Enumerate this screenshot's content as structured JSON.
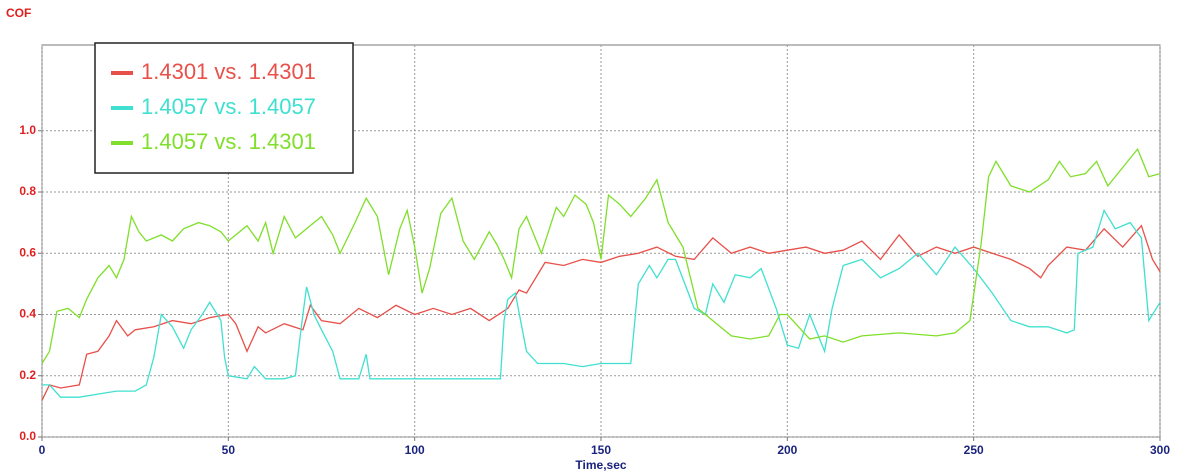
{
  "chart_data": {
    "type": "line",
    "y_label": "COF",
    "x_label": "Time,sec",
    "xlim": [
      0,
      300
    ],
    "xticks": [
      0,
      50,
      100,
      150,
      200,
      250,
      300
    ],
    "ylim": [
      0,
      1.28
    ],
    "yticks": [
      {
        "value": 0,
        "label": "0.0"
      },
      0.2,
      0.4,
      0.6,
      0.8,
      {
        "value": 1,
        "label": "1.0"
      }
    ],
    "grid": true,
    "legend": "upper left",
    "series": [
      {
        "name": "1.4301 vs. 1.4301",
        "color": "#e8504a",
        "x": [
          0,
          2,
          5,
          10,
          12,
          15,
          18,
          20,
          23,
          25,
          30,
          35,
          40,
          45,
          50,
          52,
          55,
          58,
          60,
          65,
          70,
          72,
          75,
          80,
          85,
          90,
          95,
          100,
          105,
          110,
          115,
          120,
          125,
          128,
          130,
          135,
          140,
          145,
          150,
          155,
          160,
          165,
          170,
          175,
          180,
          185,
          190,
          195,
          200,
          205,
          210,
          215,
          220,
          225,
          230,
          235,
          240,
          245,
          250,
          255,
          260,
          265,
          268,
          270,
          275,
          280,
          285,
          290,
          295,
          298,
          300
        ],
        "values": [
          0.12,
          0.17,
          0.16,
          0.17,
          0.27,
          0.28,
          0.33,
          0.38,
          0.33,
          0.35,
          0.36,
          0.38,
          0.37,
          0.39,
          0.4,
          0.37,
          0.28,
          0.36,
          0.34,
          0.37,
          0.35,
          0.43,
          0.38,
          0.37,
          0.42,
          0.39,
          0.43,
          0.4,
          0.42,
          0.4,
          0.42,
          0.38,
          0.42,
          0.48,
          0.47,
          0.57,
          0.56,
          0.58,
          0.57,
          0.59,
          0.6,
          0.62,
          0.59,
          0.58,
          0.65,
          0.6,
          0.62,
          0.6,
          0.61,
          0.62,
          0.6,
          0.61,
          0.64,
          0.58,
          0.66,
          0.59,
          0.62,
          0.6,
          0.62,
          0.6,
          0.58,
          0.55,
          0.52,
          0.56,
          0.62,
          0.61,
          0.68,
          0.62,
          0.69,
          0.58,
          0.54
        ]
      },
      {
        "name": "1.4057 vs. 1.4057",
        "color": "#40e0d0",
        "x": [
          0,
          2,
          5,
          10,
          15,
          20,
          25,
          28,
          30,
          32,
          35,
          38,
          40,
          43,
          45,
          48,
          49,
          50,
          55,
          57,
          60,
          65,
          68,
          70,
          71,
          73,
          75,
          78,
          80,
          85,
          87,
          88,
          95,
          100,
          110,
          120,
          123,
          124,
          125,
          127,
          130,
          133,
          140,
          145,
          150,
          155,
          158,
          160,
          163,
          165,
          168,
          170,
          175,
          178,
          180,
          183,
          186,
          190,
          193,
          197,
          200,
          203,
          206,
          210,
          212,
          215,
          220,
          225,
          230,
          235,
          240,
          245,
          250,
          255,
          260,
          265,
          270,
          275,
          277,
          278,
          282,
          285,
          288,
          292,
          295,
          297,
          300
        ],
        "values": [
          0.17,
          0.17,
          0.13,
          0.13,
          0.14,
          0.15,
          0.15,
          0.17,
          0.26,
          0.4,
          0.36,
          0.29,
          0.35,
          0.4,
          0.44,
          0.38,
          0.26,
          0.2,
          0.19,
          0.23,
          0.19,
          0.19,
          0.2,
          0.4,
          0.49,
          0.4,
          0.35,
          0.28,
          0.19,
          0.19,
          0.27,
          0.19,
          0.19,
          0.19,
          0.19,
          0.19,
          0.19,
          0.38,
          0.45,
          0.47,
          0.28,
          0.24,
          0.24,
          0.23,
          0.24,
          0.24,
          0.24,
          0.5,
          0.56,
          0.52,
          0.58,
          0.58,
          0.42,
          0.4,
          0.5,
          0.44,
          0.53,
          0.52,
          0.55,
          0.42,
          0.3,
          0.29,
          0.4,
          0.28,
          0.42,
          0.56,
          0.58,
          0.52,
          0.55,
          0.6,
          0.53,
          0.62,
          0.55,
          0.47,
          0.38,
          0.36,
          0.36,
          0.34,
          0.35,
          0.6,
          0.62,
          0.74,
          0.68,
          0.7,
          0.65,
          0.38,
          0.44
        ]
      },
      {
        "name": "1.4057 vs. 1.4301",
        "color": "#7fdf2a",
        "x": [
          0,
          2,
          4,
          7,
          10,
          12,
          15,
          18,
          20,
          22,
          24,
          26,
          28,
          32,
          35,
          38,
          42,
          45,
          48,
          50,
          52,
          55,
          58,
          60,
          62,
          65,
          68,
          70,
          75,
          78,
          80,
          84,
          87,
          90,
          93,
          96,
          98,
          100,
          102,
          104,
          107,
          110,
          113,
          116,
          120,
          122,
          124,
          126,
          128,
          130,
          134,
          138,
          140,
          143,
          146,
          148,
          150,
          152,
          155,
          158,
          162,
          165,
          168,
          172,
          176,
          180,
          185,
          190,
          195,
          198,
          200,
          203,
          206,
          210,
          215,
          220,
          230,
          240,
          245,
          249,
          252,
          254,
          256,
          260,
          265,
          270,
          273,
          276,
          280,
          283,
          286,
          290,
          294,
          297,
          300
        ],
        "values": [
          0.24,
          0.28,
          0.41,
          0.42,
          0.39,
          0.45,
          0.52,
          0.56,
          0.52,
          0.58,
          0.72,
          0.67,
          0.64,
          0.66,
          0.64,
          0.68,
          0.7,
          0.69,
          0.67,
          0.64,
          0.66,
          0.69,
          0.64,
          0.7,
          0.6,
          0.72,
          0.65,
          0.67,
          0.72,
          0.66,
          0.6,
          0.7,
          0.78,
          0.72,
          0.53,
          0.68,
          0.74,
          0.62,
          0.47,
          0.55,
          0.73,
          0.78,
          0.64,
          0.58,
          0.67,
          0.63,
          0.58,
          0.52,
          0.68,
          0.72,
          0.6,
          0.75,
          0.72,
          0.79,
          0.76,
          0.7,
          0.58,
          0.79,
          0.76,
          0.72,
          0.78,
          0.84,
          0.7,
          0.62,
          0.42,
          0.38,
          0.33,
          0.32,
          0.33,
          0.4,
          0.4,
          0.36,
          0.32,
          0.33,
          0.31,
          0.33,
          0.34,
          0.33,
          0.34,
          0.38,
          0.63,
          0.85,
          0.9,
          0.82,
          0.8,
          0.84,
          0.9,
          0.85,
          0.86,
          0.9,
          0.82,
          0.88,
          0.94,
          0.85,
          0.86
        ]
      }
    ]
  }
}
